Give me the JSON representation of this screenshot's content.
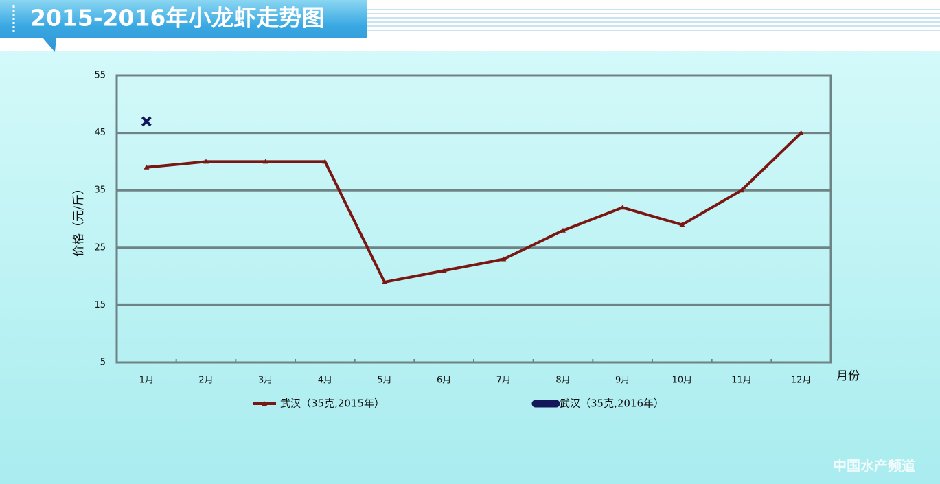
{
  "chart_data": {
    "type": "line",
    "title": "2015-2016年小龙虾走势图",
    "y_label": "价格（元/斤）",
    "x_label": "月份",
    "categories": [
      "1月",
      "2月",
      "3月",
      "4月",
      "5月",
      "6月",
      "7月",
      "8月",
      "9月",
      "10月",
      "11月",
      "12月"
    ],
    "series": [
      {
        "name": "武汉（35克,2015年）",
        "color": "#7a1712",
        "marker": "triangle",
        "values": [
          39,
          40,
          40,
          40,
          19,
          21,
          23,
          28,
          32,
          29,
          35,
          45
        ]
      },
      {
        "name": "武汉（35克,2016年）",
        "color": "#14175a",
        "marker": "x",
        "values": [
          47,
          null,
          null,
          null,
          null,
          null,
          null,
          null,
          null,
          null,
          null,
          null
        ]
      }
    ],
    "ylim": [
      5,
      55
    ],
    "yticks": [
      5,
      15,
      25,
      35,
      45,
      55
    ],
    "grid": true,
    "watermark": "中国水产频道"
  }
}
